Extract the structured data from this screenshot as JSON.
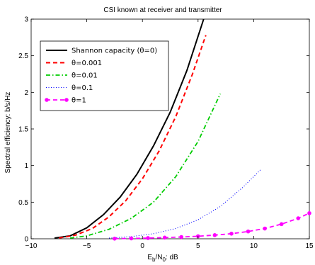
{
  "chart_data": {
    "type": "line",
    "title": "CSI known at receiver and transmitter",
    "xlabel": {
      "base": "E",
      "sub1": "b",
      "mid": "/N",
      "sub2": "0",
      "tail": ": dB"
    },
    "ylabel": "Spectral efficiency: b/s/Hz",
    "xlim": [
      -10,
      15
    ],
    "ylim": [
      0,
      3
    ],
    "xticks": [
      -10,
      -5,
      0,
      5,
      10,
      15
    ],
    "yticks": [
      0,
      0.5,
      1,
      1.5,
      2,
      2.5,
      3
    ],
    "xtick_labels": [
      "−10",
      "−5",
      "0",
      "5",
      "10",
      "15"
    ],
    "ytick_labels": [
      "0",
      "0.5",
      "1",
      "1.5",
      "2",
      "2.5",
      "3"
    ],
    "grid": false,
    "legend_position": "top-left",
    "series": [
      {
        "name": "Shannon capacity (θ=0)",
        "color": "#000000",
        "style": "solid",
        "x": [
          -7.9,
          -6.5,
          -5,
          -3.5,
          -2,
          -0.5,
          1,
          2.5,
          4,
          5.5
        ],
        "y": [
          0.01,
          0.04,
          0.15,
          0.33,
          0.57,
          0.88,
          1.27,
          1.73,
          2.3,
          3.0
        ]
      },
      {
        "name": "θ=0.001",
        "color": "#ff0000",
        "style": "dashed",
        "x": [
          -7.5,
          -6,
          -4.5,
          -3,
          -1.5,
          0,
          1.5,
          3,
          4.5,
          5.7
        ],
        "y": [
          0.01,
          0.05,
          0.14,
          0.3,
          0.52,
          0.82,
          1.2,
          1.67,
          2.25,
          2.78
        ]
      },
      {
        "name": "θ=0.01",
        "color": "#00cc00",
        "style": "dashdot",
        "x": [
          -6.5,
          -5,
          -3,
          -1,
          1,
          3,
          5,
          7
        ],
        "y": [
          0.01,
          0.04,
          0.13,
          0.28,
          0.5,
          0.85,
          1.33,
          1.98
        ]
      },
      {
        "name": "θ=0.1",
        "color": "#0000ff",
        "style": "dotted",
        "x": [
          -3,
          -1,
          1,
          3,
          5,
          7,
          9,
          10.6
        ],
        "y": [
          0.01,
          0.03,
          0.07,
          0.14,
          0.26,
          0.44,
          0.7,
          0.94
        ]
      },
      {
        "name": "θ=1",
        "color": "#ff00ff",
        "style": "dashed-marker",
        "x": [
          -2.5,
          -1,
          0.5,
          2,
          3.5,
          5,
          6.5,
          8,
          9.5,
          11,
          12.5,
          14,
          15
        ],
        "y": [
          0.002,
          0.005,
          0.01,
          0.016,
          0.024,
          0.035,
          0.05,
          0.07,
          0.1,
          0.14,
          0.2,
          0.28,
          0.35
        ]
      }
    ]
  }
}
